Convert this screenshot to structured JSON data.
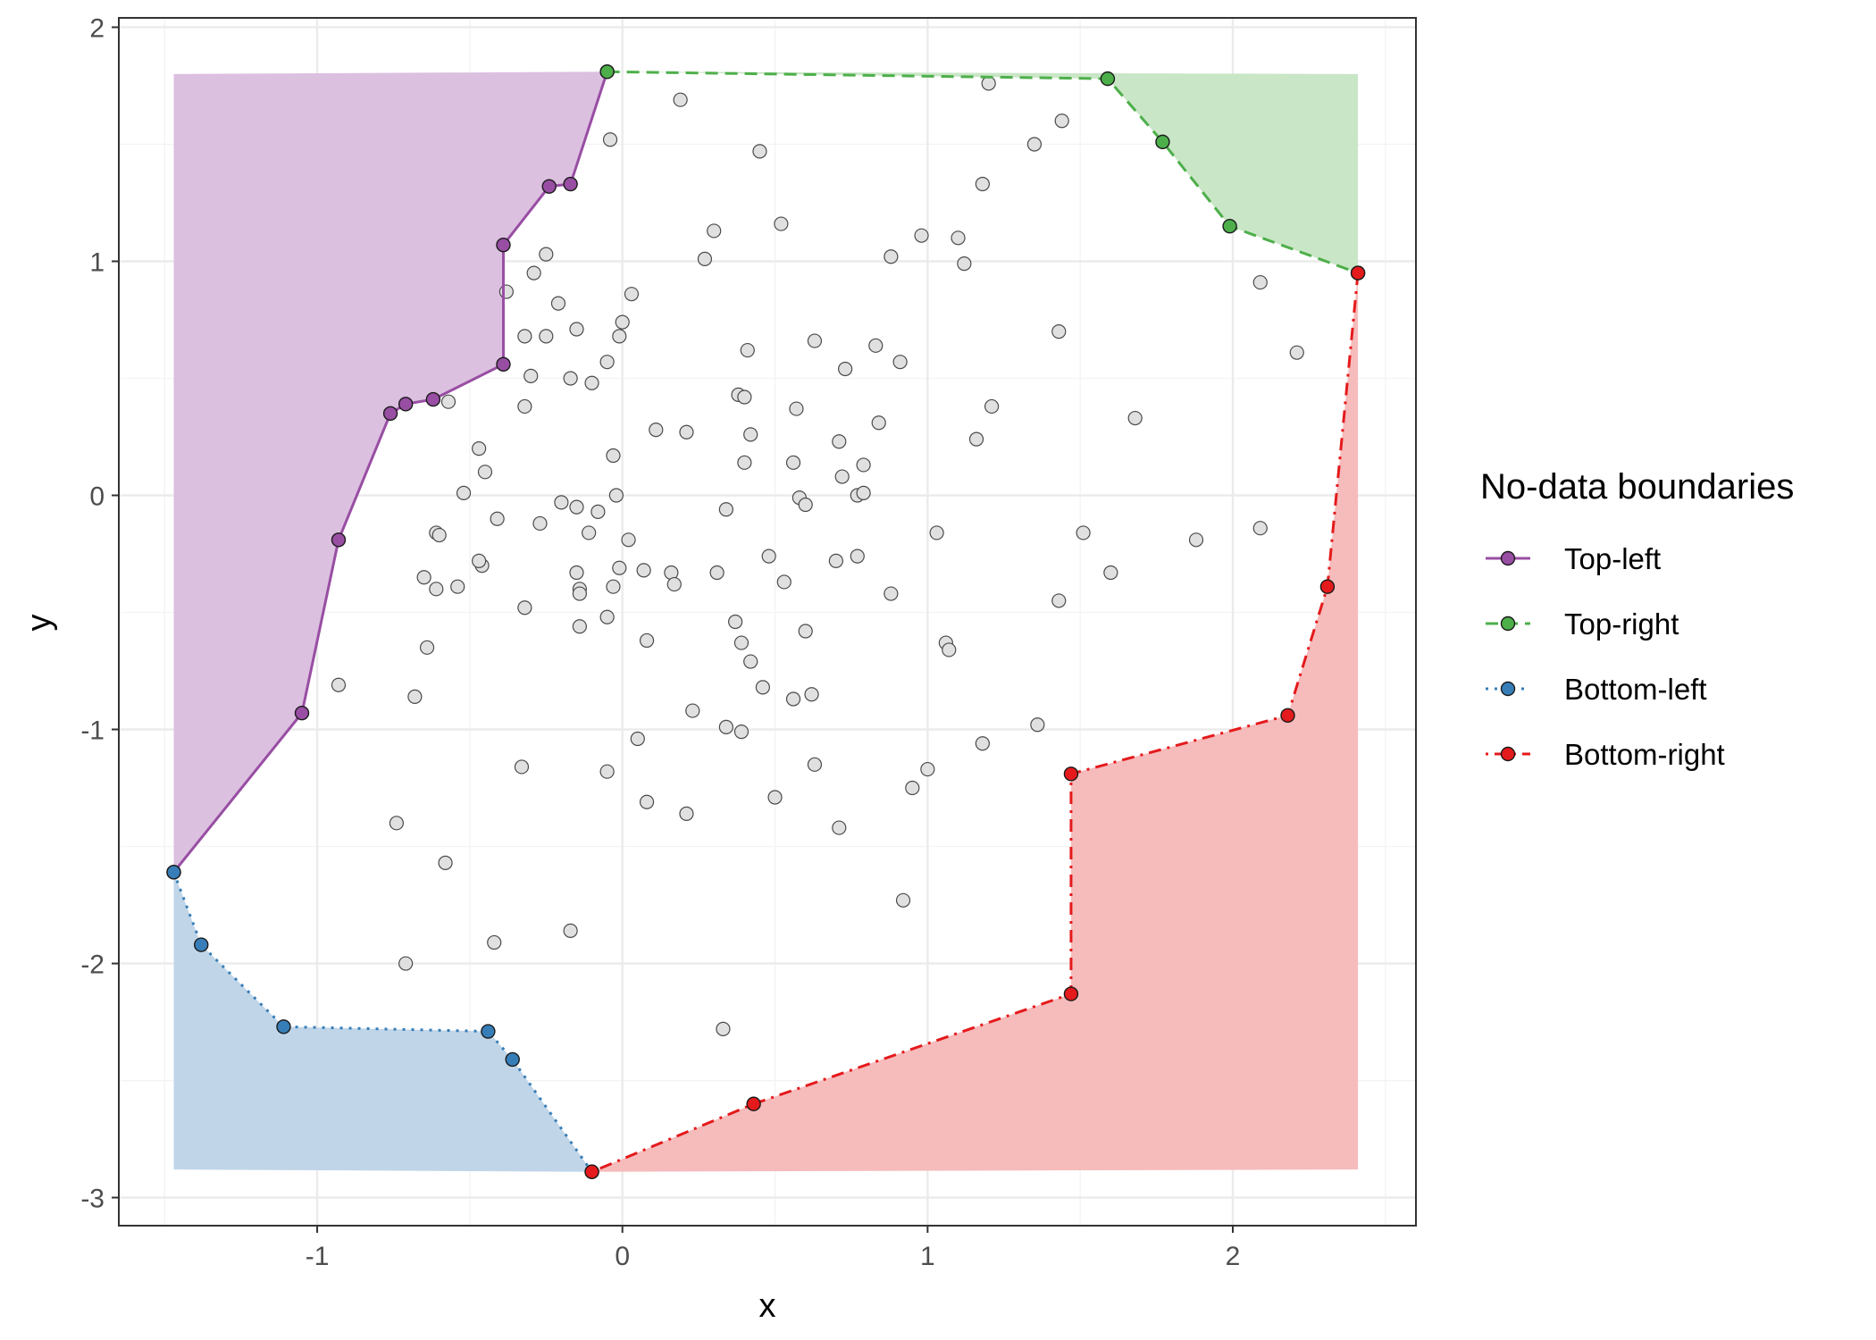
{
  "chart_data": {
    "type": "scatter",
    "xlabel": "x",
    "ylabel": "y",
    "xlim": [
      -1.65,
      2.6
    ],
    "ylim": [
      -3.12,
      2.04
    ],
    "x_ticks": [
      -1,
      0,
      1,
      2
    ],
    "y_ticks": [
      -3,
      -2,
      -1,
      0,
      1,
      2
    ],
    "x_tick_labels": [
      "-1",
      "0",
      "1",
      "2"
    ],
    "y_tick_labels": [
      "-3",
      "-2",
      "-1",
      "0",
      "1",
      "2"
    ],
    "grid": true,
    "fill_extent": {
      "xmin": -1.47,
      "xmax": 2.41,
      "ymin": -2.88,
      "ymax": 1.8
    },
    "legend": {
      "title": "No-data boundaries",
      "placement": "right",
      "entries": [
        "Top-left",
        "Top-right",
        "Bottom-left",
        "Bottom-right"
      ]
    },
    "series": [
      {
        "name": "Top-left",
        "color": "#984EA3",
        "fill": "#DCC0E0",
        "line_style": "solid",
        "corner": "top-left",
        "points": [
          [
            -1.47,
            -1.61
          ],
          [
            -1.05,
            -0.93
          ],
          [
            -0.93,
            -0.19
          ],
          [
            -0.76,
            0.35
          ],
          [
            -0.71,
            0.39
          ],
          [
            -0.62,
            0.41
          ],
          [
            -0.39,
            0.56
          ],
          [
            -0.39,
            1.07
          ],
          [
            -0.24,
            1.32
          ],
          [
            -0.17,
            1.33
          ],
          [
            -0.05,
            1.81
          ]
        ]
      },
      {
        "name": "Top-right",
        "color": "#4DAF4A",
        "fill": "#C9E6C6",
        "line_style": "dashed",
        "corner": "top-right",
        "points": [
          [
            -0.05,
            1.81
          ],
          [
            1.59,
            1.78
          ],
          [
            1.77,
            1.51
          ],
          [
            1.99,
            1.15
          ],
          [
            2.41,
            0.95
          ]
        ]
      },
      {
        "name": "Bottom-left",
        "color": "#377EB8",
        "fill": "#C0D5E8",
        "line_style": "dotted",
        "corner": "bottom-left",
        "points": [
          [
            -1.47,
            -1.61
          ],
          [
            -1.38,
            -1.92
          ],
          [
            -1.11,
            -2.27
          ],
          [
            -0.44,
            -2.29
          ],
          [
            -0.36,
            -2.41
          ],
          [
            -0.1,
            -2.89
          ]
        ]
      },
      {
        "name": "Bottom-right",
        "color": "#E41A1C",
        "fill": "#F6BBBB",
        "line_style": "dotdash",
        "corner": "bottom-right",
        "points": [
          [
            -0.1,
            -2.89
          ],
          [
            0.43,
            -2.6
          ],
          [
            1.47,
            -2.13
          ],
          [
            1.47,
            -1.19
          ],
          [
            2.18,
            -0.94
          ],
          [
            2.31,
            -0.39
          ],
          [
            2.41,
            0.95
          ]
        ]
      }
    ],
    "scatter_points": [
      [
        0.19,
        1.69
      ],
      [
        -0.04,
        1.52
      ],
      [
        0.45,
        1.47
      ],
      [
        1.2,
        1.76
      ],
      [
        1.44,
        1.6
      ],
      [
        1.35,
        1.5
      ],
      [
        1.18,
        1.33
      ],
      [
        0.3,
        1.13
      ],
      [
        0.52,
        1.16
      ],
      [
        0.27,
        1.01
      ],
      [
        0.98,
        1.11
      ],
      [
        1.1,
        1.1
      ],
      [
        0.88,
        1.02
      ],
      [
        1.12,
        0.99
      ],
      [
        -0.25,
        1.03
      ],
      [
        -0.29,
        0.95
      ],
      [
        -0.38,
        0.87
      ],
      [
        -0.21,
        0.82
      ],
      [
        0.03,
        0.86
      ],
      [
        0.0,
        0.74
      ],
      [
        0.63,
        0.66
      ],
      [
        -0.15,
        0.71
      ],
      [
        -0.32,
        0.68
      ],
      [
        -0.25,
        0.68
      ],
      [
        -0.01,
        0.68
      ],
      [
        -0.05,
        0.57
      ],
      [
        0.41,
        0.62
      ],
      [
        0.83,
        0.64
      ],
      [
        0.73,
        0.54
      ],
      [
        0.91,
        0.57
      ],
      [
        1.43,
        0.7
      ],
      [
        2.09,
        0.91
      ],
      [
        2.21,
        0.61
      ],
      [
        -0.3,
        0.51
      ],
      [
        -0.17,
        0.5
      ],
      [
        -0.1,
        0.48
      ],
      [
        0.38,
        0.43
      ],
      [
        0.4,
        0.42
      ],
      [
        -0.57,
        0.4
      ],
      [
        -0.32,
        0.38
      ],
      [
        0.57,
        0.37
      ],
      [
        1.21,
        0.38
      ],
      [
        1.68,
        0.33
      ],
      [
        0.11,
        0.28
      ],
      [
        0.21,
        0.27
      ],
      [
        0.84,
        0.31
      ],
      [
        0.42,
        0.26
      ],
      [
        0.71,
        0.23
      ],
      [
        1.16,
        0.24
      ],
      [
        -0.47,
        0.2
      ],
      [
        -0.03,
        0.17
      ],
      [
        0.4,
        0.14
      ],
      [
        0.56,
        0.14
      ],
      [
        0.79,
        0.13
      ],
      [
        -0.45,
        0.1
      ],
      [
        0.72,
        0.08
      ],
      [
        -0.52,
        0.01
      ],
      [
        -0.02,
        0.0
      ],
      [
        0.58,
        -0.01
      ],
      [
        0.77,
        0.0
      ],
      [
        0.79,
        0.01
      ],
      [
        -0.2,
        -0.03
      ],
      [
        -0.15,
        -0.05
      ],
      [
        0.6,
        -0.04
      ],
      [
        -0.41,
        -0.1
      ],
      [
        -0.08,
        -0.07
      ],
      [
        -0.27,
        -0.12
      ],
      [
        -0.61,
        -0.16
      ],
      [
        -0.6,
        -0.17
      ],
      [
        -0.11,
        -0.16
      ],
      [
        0.02,
        -0.19
      ],
      [
        0.34,
        -0.06
      ],
      [
        1.03,
        -0.16
      ],
      [
        1.51,
        -0.16
      ],
      [
        1.88,
        -0.19
      ],
      [
        2.09,
        -0.14
      ],
      [
        0.48,
        -0.26
      ],
      [
        0.7,
        -0.28
      ],
      [
        0.77,
        -0.26
      ],
      [
        -0.46,
        -0.3
      ],
      [
        -0.47,
        -0.28
      ],
      [
        -0.01,
        -0.31
      ],
      [
        0.07,
        -0.32
      ],
      [
        0.16,
        -0.33
      ],
      [
        0.31,
        -0.33
      ],
      [
        1.6,
        -0.33
      ],
      [
        -0.65,
        -0.35
      ],
      [
        -0.61,
        -0.4
      ],
      [
        -0.54,
        -0.39
      ],
      [
        -0.15,
        -0.33
      ],
      [
        -0.03,
        -0.39
      ],
      [
        0.17,
        -0.38
      ],
      [
        0.53,
        -0.37
      ],
      [
        -0.14,
        -0.4
      ],
      [
        -0.14,
        -0.42
      ],
      [
        0.88,
        -0.42
      ],
      [
        1.43,
        -0.45
      ],
      [
        -0.32,
        -0.48
      ],
      [
        -0.05,
        -0.52
      ],
      [
        0.37,
        -0.54
      ],
      [
        -0.14,
        -0.56
      ],
      [
        0.6,
        -0.58
      ],
      [
        0.08,
        -0.62
      ],
      [
        0.39,
        -0.63
      ],
      [
        1.06,
        -0.63
      ],
      [
        1.07,
        -0.66
      ],
      [
        -0.64,
        -0.65
      ],
      [
        0.42,
        -0.71
      ],
      [
        -0.93,
        -0.81
      ],
      [
        0.46,
        -0.82
      ],
      [
        -0.68,
        -0.86
      ],
      [
        0.62,
        -0.85
      ],
      [
        0.56,
        -0.87
      ],
      [
        0.23,
        -0.92
      ],
      [
        0.34,
        -0.99
      ],
      [
        0.39,
        -1.01
      ],
      [
        1.36,
        -0.98
      ],
      [
        0.05,
        -1.04
      ],
      [
        1.18,
        -1.06
      ],
      [
        -0.33,
        -1.16
      ],
      [
        -0.05,
        -1.18
      ],
      [
        0.63,
        -1.15
      ],
      [
        1.0,
        -1.17
      ],
      [
        0.95,
        -1.25
      ],
      [
        0.5,
        -1.29
      ],
      [
        0.08,
        -1.31
      ],
      [
        0.21,
        -1.36
      ],
      [
        -0.74,
        -1.4
      ],
      [
        0.71,
        -1.42
      ],
      [
        -0.58,
        -1.57
      ],
      [
        0.92,
        -1.73
      ],
      [
        -0.17,
        -1.86
      ],
      [
        -0.42,
        -1.91
      ],
      [
        -0.71,
        -2.0
      ],
      [
        0.33,
        -2.28
      ]
    ]
  }
}
